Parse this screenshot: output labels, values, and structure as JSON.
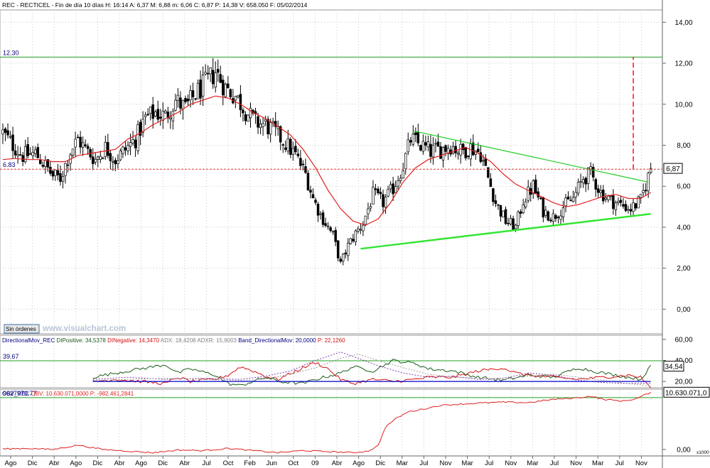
{
  "header": {
    "title_line": "REC - RECTICEL - Fin de día 10 días H: 16:14  A: 6,37  M: 6,88  m: 6,06  C: 6,87  P: 14,38  V: 658.050  F: 05/02/2014"
  },
  "watermark": {
    "button": "Sin órdenes",
    "site": "www.visualchart.com"
  },
  "colors": {
    "background": "#ffffff",
    "price_candles": "#000000",
    "moving_average": "#e02020",
    "triangle_upper": "#20cc20",
    "triangle_lower": "#33e633",
    "target_line": "#20a020",
    "target_projection": "#ff2020",
    "di_positive": "#1a5a1a",
    "di_negative": "#d01010",
    "adx": "#8040b0",
    "adxr": "#a0a0a0",
    "band": "#0000cc",
    "obv": "#e02020"
  },
  "chart_data": [
    {
      "type": "candlestick",
      "panel": "price",
      "title": "REC - RECTICEL - Fin de día 10 días",
      "ylim": [
        -1.2,
        14.6
      ],
      "yticks": [
        0,
        2,
        4,
        6,
        8,
        10,
        12,
        14
      ],
      "ytick_labels": [
        "0,00",
        "2,00",
        "4,00",
        "6,00",
        "8,00",
        "10,00",
        "12,00",
        "14,00"
      ],
      "last_close_label": "6,87",
      "annotations": [
        {
          "text": "12.30",
          "y": 12.3,
          "style": "horizontal-line"
        },
        {
          "text": "6.83",
          "y": 6.83,
          "style": "dashed-horizontal-line"
        }
      ],
      "price_path": [
        [
          0,
          8.6
        ],
        [
          4,
          8.0
        ],
        [
          8,
          7.5
        ],
        [
          13,
          7.6
        ],
        [
          17,
          7.0
        ],
        [
          20,
          6.5
        ],
        [
          23,
          6.4
        ],
        [
          27,
          7.7
        ],
        [
          30,
          8.3
        ],
        [
          33,
          7.8
        ],
        [
          37,
          7.3
        ],
        [
          41,
          7.9
        ],
        [
          45,
          7.3
        ],
        [
          49,
          7.8
        ],
        [
          53,
          8.3
        ],
        [
          57,
          9.3
        ],
        [
          61,
          9.6
        ],
        [
          65,
          9.4
        ],
        [
          69,
          10.2
        ],
        [
          73,
          9.8
        ],
        [
          77,
          10.5
        ],
        [
          81,
          11.0
        ],
        [
          85,
          11.6
        ],
        [
          89,
          10.8
        ],
        [
          93,
          10.4
        ],
        [
          97,
          9.7
        ],
        [
          101,
          9.1
        ],
        [
          105,
          9.0
        ],
        [
          109,
          8.6
        ],
        [
          113,
          8.1
        ],
        [
          117,
          7.5
        ],
        [
          121,
          6.6
        ],
        [
          124,
          5.4
        ],
        [
          127,
          4.6
        ],
        [
          129,
          4.2
        ],
        [
          132,
          3.6
        ],
        [
          135,
          2.2
        ],
        [
          138,
          3.1
        ],
        [
          141,
          3.7
        ],
        [
          144,
          4.2
        ],
        [
          148,
          5.6
        ],
        [
          152,
          5.2
        ],
        [
          156,
          5.9
        ],
        [
          160,
          7.0
        ],
        [
          163,
          8.3
        ],
        [
          167,
          8.0
        ],
        [
          171,
          7.7
        ],
        [
          175,
          7.8
        ],
        [
          179,
          8.0
        ],
        [
          183,
          7.7
        ],
        [
          187,
          7.9
        ],
        [
          191,
          7.6
        ],
        [
          194,
          6.4
        ],
        [
          197,
          5.2
        ],
        [
          201,
          4.3
        ],
        [
          205,
          4.0
        ],
        [
          208,
          5.3
        ],
        [
          212,
          6.0
        ],
        [
          216,
          4.8
        ],
        [
          220,
          4.5
        ],
        [
          224,
          5.0
        ],
        [
          228,
          5.4
        ],
        [
          232,
          6.4
        ],
        [
          235,
          6.6
        ],
        [
          239,
          5.7
        ],
        [
          243,
          5.3
        ],
        [
          247,
          5.1
        ],
        [
          251,
          4.9
        ],
        [
          255,
          5.3
        ],
        [
          259,
          6.87
        ]
      ],
      "moving_average": [
        [
          0,
          7.3
        ],
        [
          5,
          7.35
        ],
        [
          10,
          7.3
        ],
        [
          15,
          7.3
        ],
        [
          20,
          7.2
        ],
        [
          25,
          7.2
        ],
        [
          30,
          7.5
        ],
        [
          35,
          7.6
        ],
        [
          40,
          7.7
        ],
        [
          45,
          7.8
        ],
        [
          50,
          8.3
        ],
        [
          55,
          8.6
        ],
        [
          60,
          9.0
        ],
        [
          65,
          9.3
        ],
        [
          70,
          9.6
        ],
        [
          75,
          10.0
        ],
        [
          80,
          10.2
        ],
        [
          85,
          10.4
        ],
        [
          90,
          10.3
        ],
        [
          95,
          10.0
        ],
        [
          100,
          9.6
        ],
        [
          105,
          9.3
        ],
        [
          110,
          8.9
        ],
        [
          115,
          8.5
        ],
        [
          120,
          7.8
        ],
        [
          125,
          6.9
        ],
        [
          130,
          5.8
        ],
        [
          135,
          4.9
        ],
        [
          140,
          4.3
        ],
        [
          145,
          4.1
        ],
        [
          150,
          4.4
        ],
        [
          155,
          5.2
        ],
        [
          160,
          6.2
        ],
        [
          165,
          6.9
        ],
        [
          170,
          7.3
        ],
        [
          175,
          7.5
        ],
        [
          180,
          7.7
        ],
        [
          185,
          7.9
        ],
        [
          190,
          7.6
        ],
        [
          195,
          7.2
        ],
        [
          200,
          6.6
        ],
        [
          205,
          6.1
        ],
        [
          210,
          5.8
        ],
        [
          215,
          5.5
        ],
        [
          220,
          5.2
        ],
        [
          225,
          5.0
        ],
        [
          230,
          5.1
        ],
        [
          235,
          5.3
        ],
        [
          240,
          5.5
        ],
        [
          245,
          5.6
        ],
        [
          250,
          5.4
        ],
        [
          255,
          5.4
        ],
        [
          259,
          5.7
        ]
      ],
      "trendlines": [
        {
          "name": "upper",
          "from": [
            164,
            8.7
          ],
          "to": [
            258,
            6.2
          ]
        },
        {
          "name": "lower",
          "from": [
            143,
            2.95
          ],
          "to": [
            259,
            4.65
          ]
        }
      ],
      "projection": {
        "x": 252,
        "from": 6.83,
        "to": 12.3
      }
    },
    {
      "type": "line",
      "panel": "directional_movement",
      "legend": [
        {
          "label": "DirectionalMov_REC",
          "value": ""
        },
        {
          "label": "DIPositive:",
          "value": "34,5378"
        },
        {
          "label": "DINegative:",
          "value": "14,3470"
        },
        {
          "label": "ADX:",
          "value": "18,4208"
        },
        {
          "label": "ADXR:",
          "value": "15,9003"
        },
        {
          "label": "Band_DirectionalMov:",
          "value": "20,0000"
        },
        {
          "label": "P:",
          "value": "22,1260"
        }
      ],
      "ylim": [
        14,
        64
      ],
      "yticks": [
        20,
        40,
        60
      ],
      "ytick_labels": [
        "20,00",
        "40,00",
        "60,00"
      ],
      "last_value_label": "34,54",
      "annotations": [
        {
          "text": "39.67",
          "y": 39.67
        }
      ],
      "x_start": 36,
      "series": [
        {
          "name": "DIPositive",
          "values": [
            [
              36,
              24
            ],
            [
              45,
              28
            ],
            [
              55,
              32
            ],
            [
              65,
              36
            ],
            [
              70,
              28
            ],
            [
              75,
              32
            ],
            [
              85,
              26
            ],
            [
              90,
              18
            ],
            [
              95,
              16
            ],
            [
              105,
              24
            ],
            [
              110,
              20
            ],
            [
              120,
              18
            ],
            [
              125,
              22
            ],
            [
              135,
              28
            ],
            [
              140,
              34
            ],
            [
              148,
              30
            ],
            [
              156,
              40
            ],
            [
              165,
              37
            ],
            [
              170,
              32
            ],
            [
              180,
              30
            ],
            [
              190,
              24
            ],
            [
              200,
              21
            ],
            [
              210,
              26
            ],
            [
              220,
              24
            ],
            [
              230,
              33
            ],
            [
              240,
              28
            ],
            [
              250,
              24
            ],
            [
              255,
              22
            ],
            [
              259,
              34.5
            ]
          ]
        },
        {
          "name": "DINegative",
          "values": [
            [
              36,
              20
            ],
            [
              45,
              22
            ],
            [
              55,
              20
            ],
            [
              65,
              18
            ],
            [
              70,
              24
            ],
            [
              75,
              20
            ],
            [
              85,
              22
            ],
            [
              90,
              26
            ],
            [
              95,
              34
            ],
            [
              100,
              30
            ],
            [
              105,
              25
            ],
            [
              110,
              22
            ],
            [
              120,
              33
            ],
            [
              125,
              38
            ],
            [
              130,
              32
            ],
            [
              135,
              22
            ],
            [
              140,
              18
            ],
            [
              148,
              22
            ],
            [
              156,
              20
            ],
            [
              165,
              22
            ],
            [
              170,
              24
            ],
            [
              180,
              24
            ],
            [
              190,
              30
            ],
            [
              200,
              33
            ],
            [
              205,
              28
            ],
            [
              210,
              26
            ],
            [
              220,
              24
            ],
            [
              230,
              22
            ],
            [
              240,
              24
            ],
            [
              250,
              26
            ],
            [
              255,
              24
            ],
            [
              259,
              14.3
            ]
          ]
        },
        {
          "name": "ADX",
          "values": [
            [
              36,
              22
            ],
            [
              50,
              24
            ],
            [
              65,
              22
            ],
            [
              80,
              23
            ],
            [
              95,
              22
            ],
            [
              105,
              25
            ],
            [
              115,
              30
            ],
            [
              125,
              40
            ],
            [
              135,
              48
            ],
            [
              142,
              42
            ],
            [
              150,
              35
            ],
            [
              160,
              28
            ],
            [
              170,
              24
            ],
            [
              180,
              25
            ],
            [
              190,
              22
            ],
            [
              200,
              23
            ],
            [
              210,
              28
            ],
            [
              220,
              26
            ],
            [
              230,
              21
            ],
            [
              240,
              19
            ],
            [
              250,
              18
            ],
            [
              259,
              18.4
            ]
          ]
        },
        {
          "name": "ADXR",
          "values": [
            [
              36,
              21
            ],
            [
              50,
              22
            ],
            [
              65,
              23
            ],
            [
              80,
              22
            ],
            [
              95,
              21
            ],
            [
              105,
              22
            ],
            [
              115,
              27
            ],
            [
              125,
              33
            ],
            [
              135,
              42
            ],
            [
              142,
              46
            ],
            [
              150,
              40
            ],
            [
              160,
              33
            ],
            [
              170,
              27
            ],
            [
              180,
              24
            ],
            [
              190,
              23
            ],
            [
              200,
              22
            ],
            [
              210,
              25
            ],
            [
              220,
              27
            ],
            [
              230,
              24
            ],
            [
              240,
              21
            ],
            [
              250,
              18
            ],
            [
              259,
              15.9
            ]
          ]
        },
        {
          "name": "Band_DirectionalMov",
          "values": [
            [
              36,
              20
            ],
            [
              259,
              20
            ]
          ]
        }
      ]
    },
    {
      "type": "line",
      "panel": "obv",
      "legend": [
        {
          "label": "OBV_REC",
          "value": ""
        },
        {
          "label": "OBV:",
          "value": "10.630.071,0000"
        },
        {
          "label": "P:",
          "value": "-982.461,2841"
        }
      ],
      "ylim": [
        -1200000,
        11200000
      ],
      "yticks": [
        0
      ],
      "ytick_labels": [
        "0,00"
      ],
      "scale_note": "x1000",
      "last_value_label": "10.630.071,0",
      "annotations": [
        {
          "text": "9627970.77",
          "y": 9627970.77
        }
      ],
      "series": [
        {
          "name": "OBV",
          "values": [
            [
              0,
              100000
            ],
            [
              10,
              200000
            ],
            [
              20,
              0
            ],
            [
              30,
              800000
            ],
            [
              40,
              0
            ],
            [
              50,
              -300000
            ],
            [
              60,
              -600000
            ],
            [
              70,
              -100000
            ],
            [
              80,
              -200000
            ],
            [
              90,
              200000
            ],
            [
              100,
              -200000
            ],
            [
              110,
              -600000
            ],
            [
              120,
              -200000
            ],
            [
              130,
              -400000
            ],
            [
              140,
              -600000
            ],
            [
              146,
              -300000
            ],
            [
              150,
              700000
            ],
            [
              153,
              4200000
            ],
            [
              157,
              5700000
            ],
            [
              162,
              7000000
            ],
            [
              168,
              7500000
            ],
            [
              175,
              8200000
            ],
            [
              182,
              8400000
            ],
            [
              190,
              8600000
            ],
            [
              200,
              8800000
            ],
            [
              210,
              8700000
            ],
            [
              220,
              9300000
            ],
            [
              230,
              9600000
            ],
            [
              235,
              9900000
            ],
            [
              240,
              9300000
            ],
            [
              248,
              9000000
            ],
            [
              253,
              9400000
            ],
            [
              259,
              10630071
            ]
          ]
        }
      ]
    }
  ],
  "x_axis": {
    "labels": [
      "Ago",
      "Dic",
      "Abr",
      "Ago",
      "Dic",
      "Abr",
      "Ago",
      "Dic",
      "Abr",
      "Jul",
      "Oct",
      "Feb",
      "Jun",
      "Oct",
      "09",
      "Abr",
      "Ago",
      "Dic",
      "Mar",
      "Jul",
      "Nov",
      "Mar",
      "Jul",
      "Nov",
      "Mar",
      "Jul",
      "Nov",
      "Mar",
      "Jul",
      "Nov"
    ]
  }
}
